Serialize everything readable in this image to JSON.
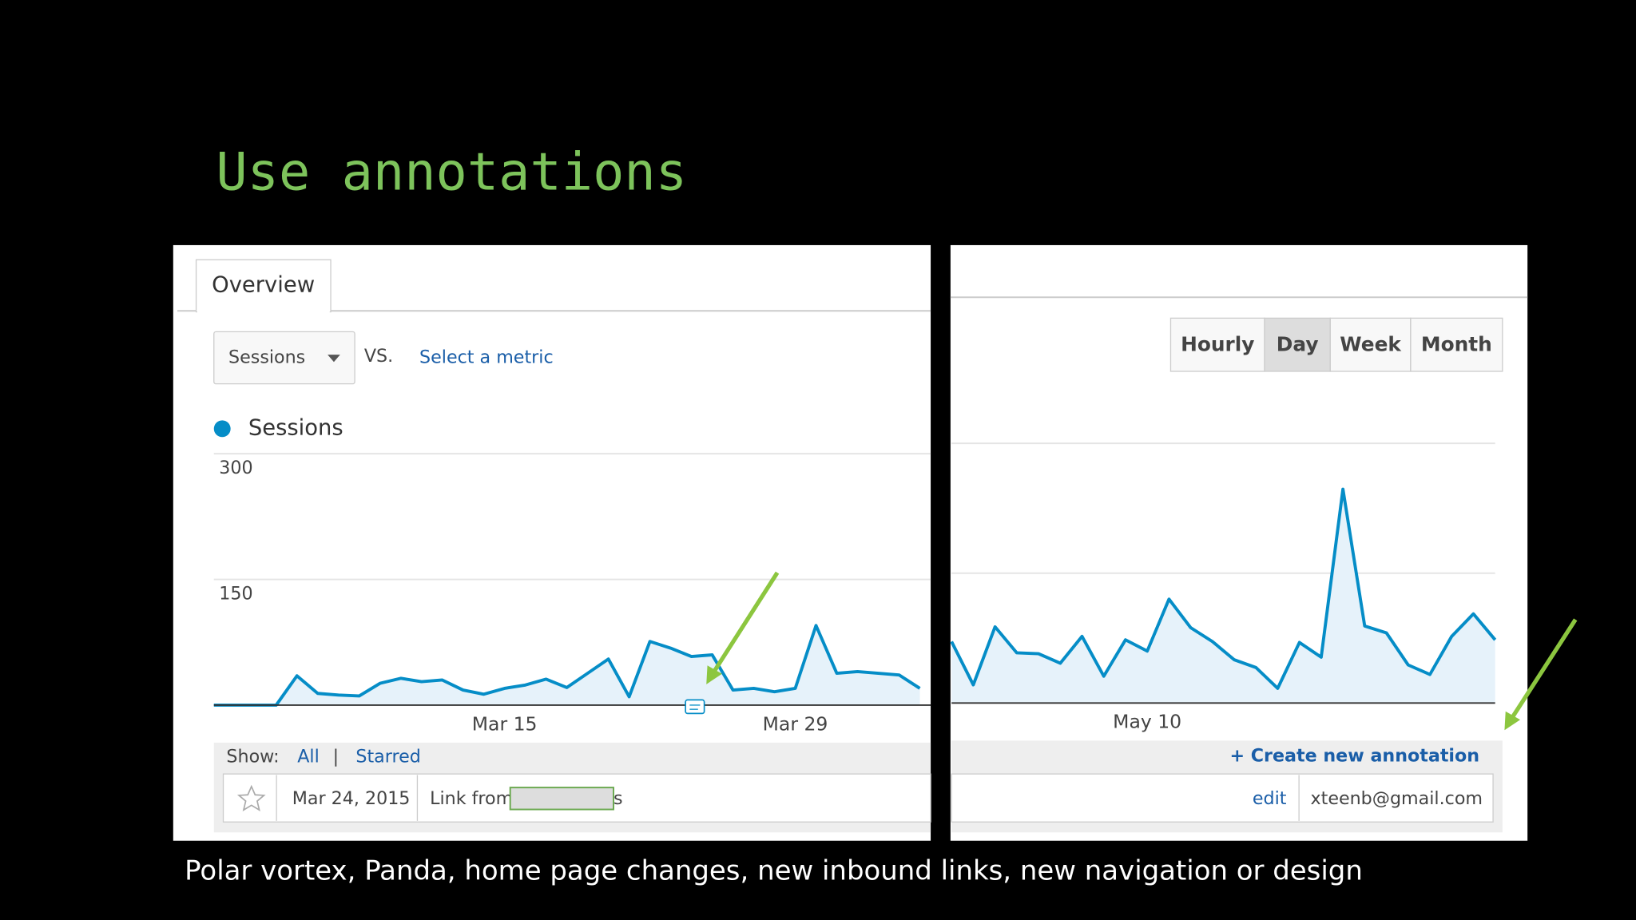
{
  "title": "Use annotations",
  "caption": "Polar vortex, Panda, home page changes, new inbound links, new navigation or design",
  "left_panel": {
    "tab": "Overview",
    "metric_dropdown": "Sessions",
    "vs": "VS.",
    "select_metric": "Select a metric",
    "show_label": "Show:",
    "show_all": "All",
    "separator": "|",
    "show_starred": "Starred",
    "annotation": {
      "date": "Mar 24, 2015",
      "text": "Link from",
      "text_suffix": "s"
    }
  },
  "right_panel": {
    "buttons": [
      "Hourly",
      "Day",
      "Week",
      "Month"
    ],
    "active_button": "Day",
    "create_annotation": "+ Create new annotation",
    "edit": "edit",
    "author": "xteenb@gmail.com"
  },
  "chart_data": [
    {
      "type": "line",
      "categories": [
        null,
        null,
        null,
        null,
        null,
        null,
        null,
        null,
        null,
        null,
        null,
        null,
        null,
        null,
        "Mar 15",
        null,
        null,
        null,
        null,
        null,
        null,
        null,
        null,
        null,
        null,
        null,
        null,
        null,
        "Mar 29",
        null,
        null,
        null,
        null,
        null,
        null
      ],
      "series": [
        {
          "name": "Sessions",
          "color": "#058dc7",
          "values": [
            0,
            0,
            0,
            0,
            35,
            14,
            12,
            11,
            26,
            32,
            28,
            30,
            18,
            13,
            20,
            24,
            31,
            21,
            38,
            55,
            10,
            76,
            68,
            58,
            60,
            18,
            20,
            16,
            20,
            95,
            38,
            40,
            38,
            36,
            20
          ]
        }
      ],
      "ylim": [
        0,
        300
      ],
      "yticks": [
        150,
        300
      ],
      "grid": true
    },
    {
      "type": "line",
      "categories": [
        null,
        null,
        null,
        null,
        null,
        null,
        null,
        null,
        null,
        "May 10",
        null,
        null,
        null,
        null,
        null,
        null,
        null,
        null,
        null,
        null,
        null,
        null,
        null,
        null,
        null,
        null
      ],
      "series": [
        {
          "color": "#058dc7",
          "values": [
            71,
            21,
            88,
            58,
            57,
            46,
            77,
            31,
            73,
            60,
            120,
            87,
            71,
            50,
            41,
            17,
            70,
            53,
            247,
            89,
            81,
            44,
            33,
            77,
            103,
            73
          ]
        }
      ],
      "ylim": [
        0,
        300
      ],
      "yticks": [
        150,
        300
      ],
      "grid": true,
      "show_tick_labels": false
    }
  ]
}
